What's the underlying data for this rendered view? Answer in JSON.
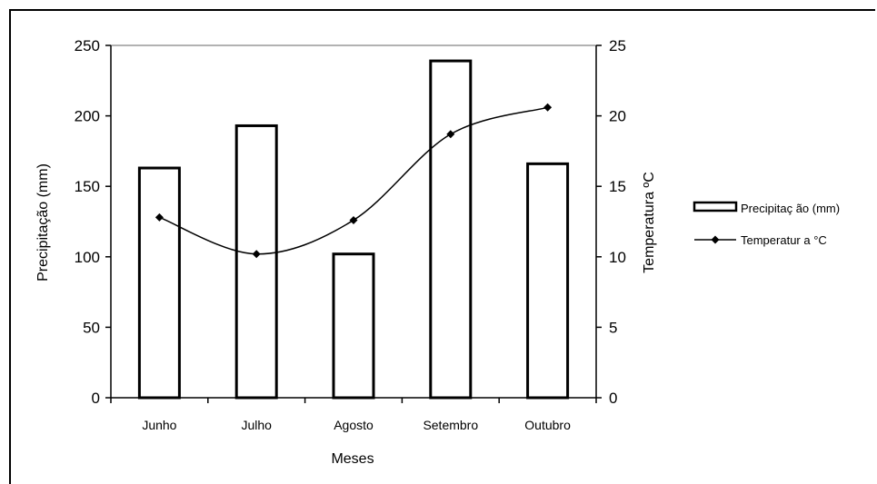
{
  "chart_data": {
    "type": "bar",
    "categories": [
      "Junho",
      "Julho",
      "Agosto",
      "Setembro",
      "Outubro"
    ],
    "series": [
      {
        "name": "Precipitação (mm)",
        "type": "bar",
        "axis": "left",
        "values": [
          163,
          193,
          102,
          239,
          166
        ]
      },
      {
        "name": "Temperatura °C",
        "type": "line",
        "axis": "right",
        "values": [
          12.8,
          10.2,
          12.6,
          18.7,
          20.6
        ]
      }
    ],
    "xlabel": "Meses",
    "ylabel": "Precipitação (mm)",
    "y2label": "Temperatura ºC",
    "ylim": [
      0,
      250
    ],
    "y2lim": [
      0,
      25
    ],
    "yticks": [
      "0",
      "50",
      "100",
      "150",
      "200",
      "250"
    ],
    "y2ticks": [
      "0",
      "5",
      "10",
      "15",
      "20",
      "25"
    ],
    "legend": {
      "position": "right",
      "bar_label": "Precipitaç ão (mm)",
      "line_label": "Temperatur a °C"
    },
    "grid": false,
    "colors": {
      "bar_fill": "#ffffff",
      "bar_stroke": "#000000",
      "line": "#000000"
    }
  }
}
